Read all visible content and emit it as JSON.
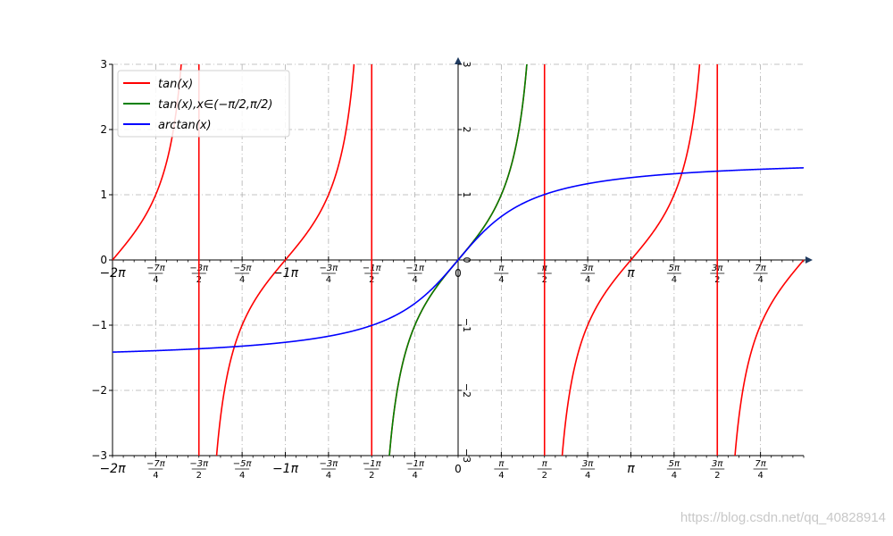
{
  "watermark": "https://blog.csdn.net/qq_40828914",
  "chart_data": {
    "type": "line",
    "title": "",
    "xlabel": "",
    "ylabel": "",
    "xlim": [
      -6.2832,
      6.2832
    ],
    "ylim": [
      -3,
      3
    ],
    "grid": true,
    "grid_style": "dash-dot",
    "legend_position": "top-left",
    "y_ticks": [
      {
        "value": -3,
        "label": "−3"
      },
      {
        "value": -2,
        "label": "−2"
      },
      {
        "value": -1,
        "label": "−1"
      },
      {
        "value": 0,
        "label": "0"
      },
      {
        "value": 1,
        "label": "1"
      },
      {
        "value": 2,
        "label": "2"
      },
      {
        "value": 3,
        "label": "3"
      }
    ],
    "x_ticks": [
      {
        "value": -6.2832,
        "label": "−2π"
      },
      {
        "value": -5.4978,
        "num": "−7π",
        "den": "4"
      },
      {
        "value": -4.7124,
        "num": "−3π",
        "den": "2"
      },
      {
        "value": -3.927,
        "num": "−5π",
        "den": "4"
      },
      {
        "value": -3.1416,
        "label": "−1π"
      },
      {
        "value": -2.3562,
        "num": "−3π",
        "den": "4"
      },
      {
        "value": -1.5708,
        "num": "−1π",
        "den": "2"
      },
      {
        "value": -0.7854,
        "num": "−1π",
        "den": "4"
      },
      {
        "value": 0,
        "label": "0"
      },
      {
        "value": 0.7854,
        "num": "π",
        "den": "4"
      },
      {
        "value": 1.5708,
        "num": "π",
        "den": "2"
      },
      {
        "value": 2.3562,
        "num": "3π",
        "den": "4"
      },
      {
        "value": 3.1416,
        "label": "π"
      },
      {
        "value": 3.927,
        "num": "5π",
        "den": "4"
      },
      {
        "value": 4.7124,
        "num": "3π",
        "den": "2"
      },
      {
        "value": 5.4978,
        "num": "7π",
        "den": "4"
      }
    ],
    "series": [
      {
        "name": "tan(x)",
        "function": "tan",
        "domain": [
          -6.2832,
          6.2832
        ],
        "color": "#ff0000",
        "asymptotes": [
          -4.7124,
          -1.5708,
          1.5708,
          4.7124
        ]
      },
      {
        "name": "tan(x),x∈(−π/2,π/2)",
        "function": "tan",
        "domain": [
          -1.5708,
          1.5708
        ],
        "color": "#008000"
      },
      {
        "name": "arctan(x)",
        "function": "arctan",
        "domain": [
          -6.2832,
          6.2832
        ],
        "color": "#0000ff"
      }
    ]
  }
}
